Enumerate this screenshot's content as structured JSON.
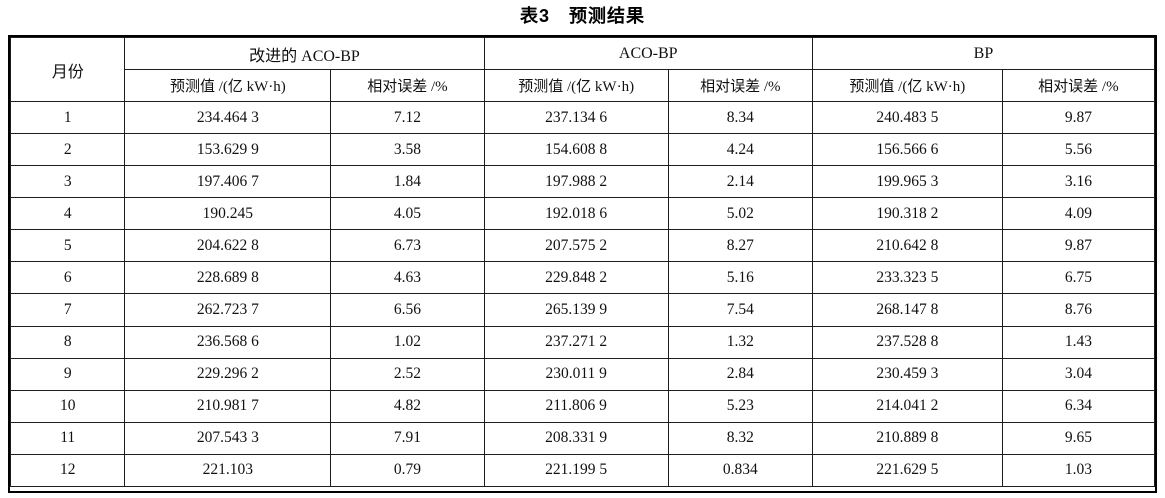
{
  "caption": "表3　预测结果",
  "table": {
    "month_header": "月份",
    "groups": [
      {
        "label": "改进的 ACO-BP"
      },
      {
        "label": "ACO-BP"
      },
      {
        "label": "BP"
      }
    ],
    "pred_header": "预测值 /(亿 kW·h)",
    "err_header": "相对误差 /%",
    "rows": [
      {
        "month": "1",
        "values": [
          "234.464 3",
          "7.12",
          "237.134 6",
          "8.34",
          "240.483 5",
          "9.87"
        ]
      },
      {
        "month": "2",
        "values": [
          "153.629 9",
          "3.58",
          "154.608 8",
          "4.24",
          "156.566 6",
          "5.56"
        ]
      },
      {
        "month": "3",
        "values": [
          "197.406 7",
          "1.84",
          "197.988 2",
          "2.14",
          "199.965 3",
          "3.16"
        ]
      },
      {
        "month": "4",
        "values": [
          "190.245",
          "4.05",
          "192.018 6",
          "5.02",
          "190.318 2",
          "4.09"
        ]
      },
      {
        "month": "5",
        "values": [
          "204.622 8",
          "6.73",
          "207.575 2",
          "8.27",
          "210.642 8",
          "9.87"
        ]
      },
      {
        "month": "6",
        "values": [
          "228.689 8",
          "4.63",
          "229.848 2",
          "5.16",
          "233.323 5",
          "6.75"
        ]
      },
      {
        "month": "7",
        "values": [
          "262.723 7",
          "6.56",
          "265.139 9",
          "7.54",
          "268.147 8",
          "8.76"
        ]
      },
      {
        "month": "8",
        "values": [
          "236.568 6",
          "1.02",
          "237.271 2",
          "1.32",
          "237.528 8",
          "1.43"
        ]
      },
      {
        "month": "9",
        "values": [
          "229.296 2",
          "2.52",
          "230.011 9",
          "2.84",
          "230.459 3",
          "3.04"
        ]
      },
      {
        "month": "10",
        "values": [
          "210.981 7",
          "4.82",
          "211.806 9",
          "5.23",
          "214.041 2",
          "6.34"
        ]
      },
      {
        "month": "11",
        "values": [
          "207.543 3",
          "7.91",
          "208.331 9",
          "8.32",
          "210.889 8",
          "9.65"
        ]
      },
      {
        "month": "12",
        "values": [
          "221.103",
          "0.79",
          "221.199 5",
          "0.834",
          "221.629 5",
          "1.03"
        ]
      }
    ]
  }
}
